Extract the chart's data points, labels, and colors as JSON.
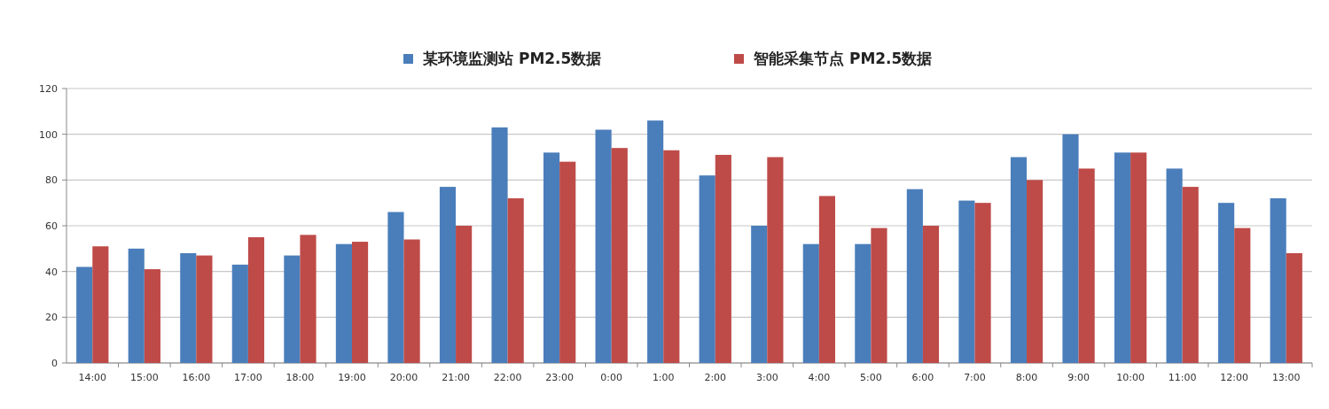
{
  "chart_data": {
    "type": "bar",
    "categories": [
      "14:00",
      "15:00",
      "16:00",
      "17:00",
      "18:00",
      "19:00",
      "20:00",
      "21:00",
      "22:00",
      "23:00",
      "0:00",
      "1:00",
      "2:00",
      "3:00",
      "4:00",
      "5:00",
      "6:00",
      "7:00",
      "8:00",
      "9:00",
      "10:00",
      "11:00",
      "12:00",
      "13:00"
    ],
    "series": [
      {
        "name": "某环境监测站 PM2.5数据",
        "color": "#4a7ebb",
        "values": [
          42,
          50,
          48,
          43,
          47,
          52,
          66,
          77,
          103,
          92,
          102,
          106,
          82,
          60,
          52,
          52,
          76,
          71,
          90,
          100,
          92,
          85,
          70,
          72
        ]
      },
      {
        "name": "智能采集节点 PM2.5数据",
        "color": "#be4b48",
        "values": [
          51,
          41,
          47,
          55,
          56,
          53,
          54,
          60,
          72,
          88,
          94,
          93,
          91,
          90,
          73,
          59,
          60,
          70,
          80,
          85,
          92,
          77,
          59,
          48
        ]
      }
    ],
    "ylim": [
      0,
      120
    ],
    "yticks": [
      0,
      20,
      40,
      60,
      80,
      100,
      120
    ],
    "grid": "y",
    "legend": "top"
  }
}
